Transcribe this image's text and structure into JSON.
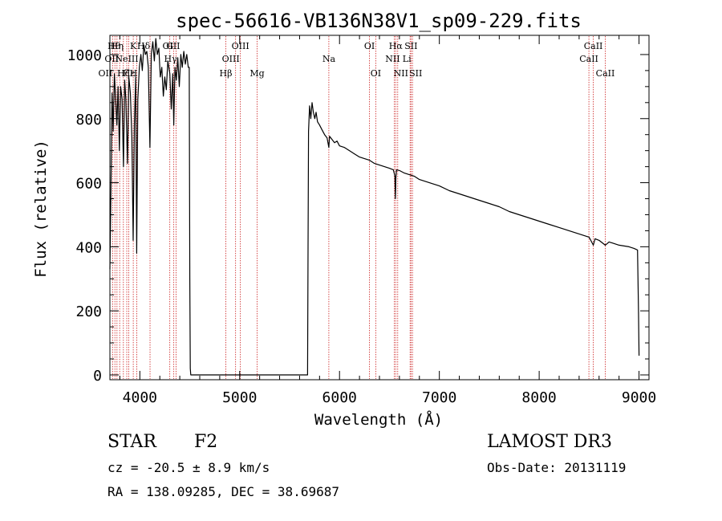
{
  "chart_data": {
    "type": "line",
    "title": "spec-56616-VB136N38V1_sp09-229.fits",
    "xlabel": "Wavelength (Å)",
    "ylabel": "Flux (relative)",
    "xlim": [
      3700,
      9100
    ],
    "ylim": [
      -15,
      1060
    ],
    "xticks": [
      4000,
      5000,
      6000,
      7000,
      8000,
      9000
    ],
    "yticks": [
      0,
      200,
      400,
      600,
      800,
      1000
    ],
    "x_tick_labels": [
      "4000",
      "5000",
      "6000",
      "7000",
      "8000",
      "9000"
    ],
    "y_tick_labels": [
      "0",
      "200",
      "400",
      "600",
      "800",
      "1000"
    ],
    "series": [
      {
        "name": "flux",
        "color": "#000000",
        "points": [
          [
            3700,
            330
          ],
          [
            3712,
            620
          ],
          [
            3722,
            880
          ],
          [
            3733,
            760
          ],
          [
            3745,
            940
          ],
          [
            3758,
            860
          ],
          [
            3770,
            780
          ],
          [
            3782,
            900
          ],
          [
            3795,
            700
          ],
          [
            3808,
            900
          ],
          [
            3822,
            860
          ],
          [
            3836,
            650
          ],
          [
            3848,
            920
          ],
          [
            3860,
            860
          ],
          [
            3876,
            660
          ],
          [
            3890,
            930
          ],
          [
            3905,
            880
          ],
          [
            3920,
            740
          ],
          [
            3933,
            420
          ],
          [
            3945,
            780
          ],
          [
            3958,
            930
          ],
          [
            3968,
            380
          ],
          [
            3980,
            860
          ],
          [
            3995,
            960
          ],
          [
            4010,
            1000
          ],
          [
            4025,
            950
          ],
          [
            4040,
            1030
          ],
          [
            4055,
            1000
          ],
          [
            4070,
            1010
          ],
          [
            4085,
            960
          ],
          [
            4101,
            710
          ],
          [
            4115,
            1000
          ],
          [
            4130,
            1040
          ],
          [
            4145,
            980
          ],
          [
            4160,
            1050
          ],
          [
            4175,
            1000
          ],
          [
            4190,
            1020
          ],
          [
            4205,
            930
          ],
          [
            4220,
            960
          ],
          [
            4235,
            870
          ],
          [
            4250,
            930
          ],
          [
            4265,
            890
          ],
          [
            4280,
            980
          ],
          [
            4300,
            940
          ],
          [
            4315,
            830
          ],
          [
            4330,
            940
          ],
          [
            4340,
            780
          ],
          [
            4352,
            960
          ],
          [
            4365,
            920
          ],
          [
            4380,
            990
          ],
          [
            4395,
            900
          ],
          [
            4410,
            1000
          ],
          [
            4425,
            960
          ],
          [
            4440,
            1010
          ],
          [
            4455,
            970
          ],
          [
            4470,
            1000
          ],
          [
            4485,
            960
          ],
          [
            4495,
            960
          ],
          [
            4500,
            300
          ],
          [
            4505,
            20
          ],
          [
            4510,
            0
          ],
          [
            5680,
            0
          ],
          [
            5685,
            400
          ],
          [
            5690,
            760
          ],
          [
            5700,
            840
          ],
          [
            5712,
            800
          ],
          [
            5725,
            850
          ],
          [
            5738,
            820
          ],
          [
            5752,
            800
          ],
          [
            5765,
            820
          ],
          [
            5780,
            790
          ],
          [
            5800,
            780
          ],
          [
            5825,
            765
          ],
          [
            5850,
            750
          ],
          [
            5875,
            740
          ],
          [
            5893,
            710
          ],
          [
            5900,
            745
          ],
          [
            5925,
            735
          ],
          [
            5950,
            725
          ],
          [
            5975,
            730
          ],
          [
            6000,
            715
          ],
          [
            6050,
            710
          ],
          [
            6100,
            700
          ],
          [
            6150,
            690
          ],
          [
            6200,
            680
          ],
          [
            6250,
            675
          ],
          [
            6300,
            670
          ],
          [
            6350,
            660
          ],
          [
            6400,
            655
          ],
          [
            6450,
            650
          ],
          [
            6500,
            645
          ],
          [
            6540,
            640
          ],
          [
            6555,
            620
          ],
          [
            6560,
            550
          ],
          [
            6565,
            615
          ],
          [
            6570,
            640
          ],
          [
            6600,
            638
          ],
          [
            6650,
            630
          ],
          [
            6700,
            625
          ],
          [
            6750,
            620
          ],
          [
            6800,
            610
          ],
          [
            6900,
            600
          ],
          [
            7000,
            590
          ],
          [
            7100,
            575
          ],
          [
            7200,
            565
          ],
          [
            7300,
            555
          ],
          [
            7400,
            545
          ],
          [
            7500,
            535
          ],
          [
            7600,
            525
          ],
          [
            7700,
            510
          ],
          [
            7800,
            500
          ],
          [
            7900,
            490
          ],
          [
            8000,
            480
          ],
          [
            8100,
            470
          ],
          [
            8200,
            460
          ],
          [
            8300,
            450
          ],
          [
            8400,
            440
          ],
          [
            8500,
            430
          ],
          [
            8542,
            405
          ],
          [
            8560,
            425
          ],
          [
            8600,
            420
          ],
          [
            8662,
            405
          ],
          [
            8700,
            415
          ],
          [
            8800,
            405
          ],
          [
            8900,
            400
          ],
          [
            8950,
            395
          ],
          [
            8985,
            390
          ],
          [
            8995,
            200
          ],
          [
            9000,
            60
          ]
        ]
      }
    ],
    "lines": [
      {
        "wavelength": 3727,
        "label": "OII",
        "row": 3,
        "dx": -9
      },
      {
        "wavelength": 3750,
        "label": "Hθ",
        "row": 1,
        "dx": -1
      },
      {
        "wavelength": 3771,
        "label": "Hη",
        "row": 1,
        "dx": 0
      },
      {
        "wavelength": 3798,
        "label": "OII",
        "row": 2,
        "dx": -10
      },
      {
        "wavelength": 3835,
        "label": "Hζ",
        "row": 3,
        "dx": 0
      },
      {
        "wavelength": 3869,
        "label": "NeIII",
        "row": 2,
        "dx": 0
      },
      {
        "wavelength": 3889,
        "label": "Hε",
        "row": 3,
        "dx": 0
      },
      {
        "wavelength": 3934,
        "label": "K",
        "row": 1,
        "dx": 0
      },
      {
        "wavelength": 3969,
        "label": "H",
        "row": 3,
        "dx": -4
      },
      {
        "wavelength": 4102,
        "label": "Hδ",
        "row": 1,
        "dx": -8
      },
      {
        "wavelength": 4300,
        "label": "G",
        "row": 1,
        "dx": 0
      },
      {
        "wavelength": 4340,
        "label": "Hγ",
        "row": 2,
        "dx": -4
      },
      {
        "wavelength": 4363,
        "label": "OIII",
        "row": 1,
        "dx": -6
      },
      {
        "wavelength": 4861,
        "label": "Hβ",
        "row": 3,
        "dx": 0
      },
      {
        "wavelength": 4959,
        "label": "OIII",
        "row": 2,
        "dx": -6
      },
      {
        "wavelength": 5007,
        "label": "OIII",
        "row": 1,
        "dx": 0
      },
      {
        "wavelength": 5175,
        "label": "Mg",
        "row": 3,
        "dx": 0
      },
      {
        "wavelength": 5893,
        "label": "Na",
        "row": 2,
        "dx": 0
      },
      {
        "wavelength": 6300,
        "label": "OI",
        "row": 1,
        "dx": 0
      },
      {
        "wavelength": 6363,
        "label": "OI",
        "row": 3,
        "dx": 0
      },
      {
        "wavelength": 6548,
        "label": "NII",
        "row": 2,
        "dx": -2
      },
      {
        "wavelength": 6563,
        "label": "Hα",
        "row": 1,
        "dx": 0
      },
      {
        "wavelength": 6583,
        "label": "NII",
        "row": 3,
        "dx": 4
      },
      {
        "wavelength": 6707,
        "label": "Li",
        "row": 2,
        "dx": -4
      },
      {
        "wavelength": 6716,
        "label": "SII",
        "row": 1,
        "dx": 0
      },
      {
        "wavelength": 6731,
        "label": "SII",
        "row": 3,
        "dx": 4
      },
      {
        "wavelength": 8498,
        "label": "CaII",
        "row": 2,
        "dx": 0
      },
      {
        "wavelength": 8542,
        "label": "CaII",
        "row": 1,
        "dx": 0
      },
      {
        "wavelength": 8662,
        "label": "CaII",
        "row": 3,
        "dx": 0
      }
    ]
  },
  "info": {
    "object_class": "STAR",
    "subclass": "F2",
    "survey": "LAMOST DR3",
    "velocity": "cz = -20.5 ± 8.9 km/s",
    "obs_date": "Obs-Date: 20131119",
    "coords": "RA = 138.09285, DEC =  38.69687"
  },
  "colors": {
    "spectrum": "#000000",
    "line_markers": "#cc2222",
    "axis": "#000000"
  }
}
